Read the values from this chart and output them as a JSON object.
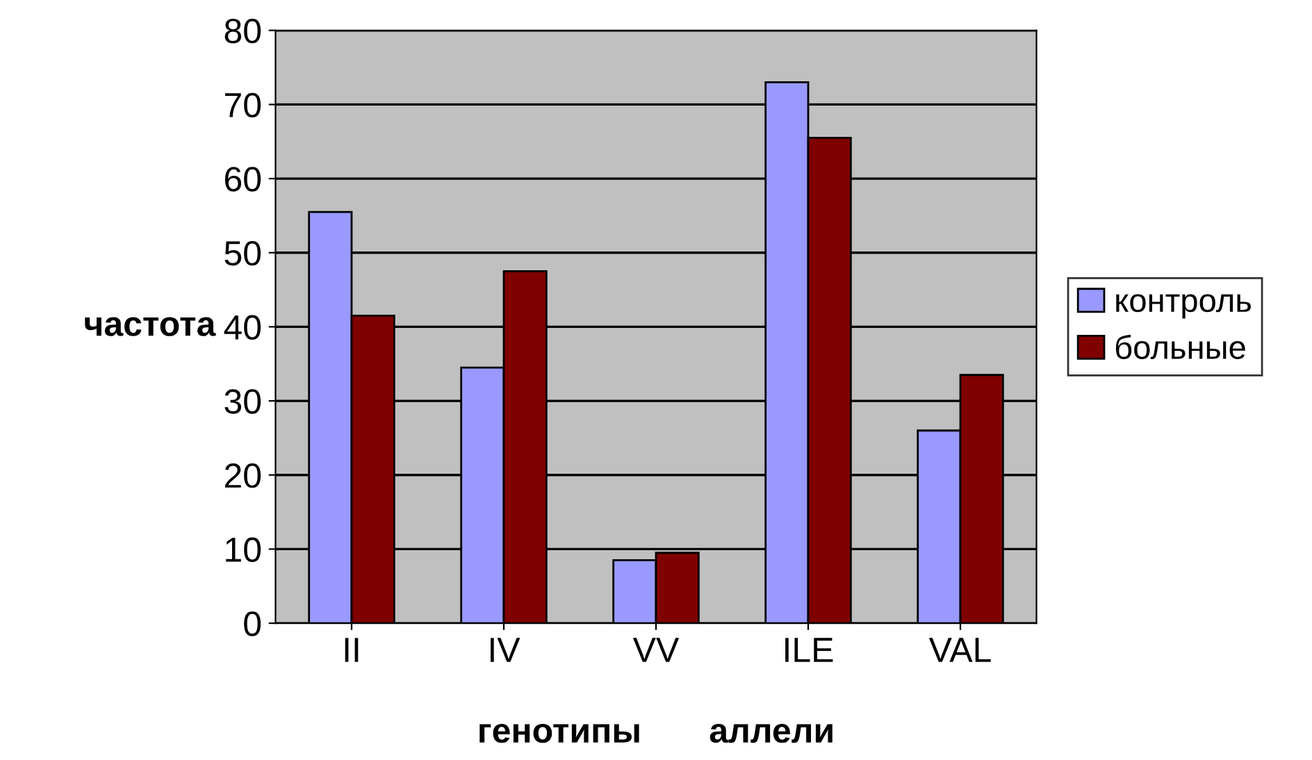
{
  "chart_data": {
    "type": "bar",
    "ylabel": "частота",
    "xlabel": "генотипы       аллели",
    "categories": [
      "II",
      "IV",
      "VV",
      "ILE",
      "VAL"
    ],
    "series": [
      {
        "name": "контроль",
        "color": "#9999ff",
        "values": [
          55.5,
          34.5,
          8.5,
          73,
          26
        ]
      },
      {
        "name": "больные",
        "color": "#800000",
        "values": [
          41.5,
          47.5,
          9.5,
          65.5,
          33.5
        ]
      }
    ],
    "ylim": [
      0,
      80
    ],
    "yticks": [
      0,
      10,
      20,
      30,
      40,
      50,
      60,
      70,
      80
    ],
    "grid": "y",
    "legend": "right"
  }
}
